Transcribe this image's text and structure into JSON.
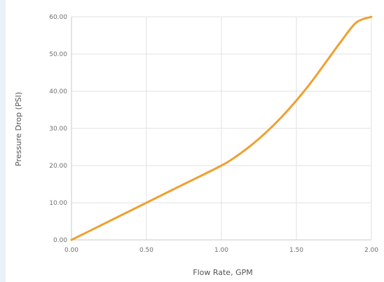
{
  "chart_data": {
    "type": "line",
    "title": "",
    "xlabel": "Flow Rate, GPM",
    "ylabel": "Pressure Drop (PSI)",
    "xlim": [
      0,
      2
    ],
    "ylim": [
      0,
      60
    ],
    "grid": true,
    "x_ticks": [
      "0.00",
      "0.50",
      "1.00",
      "1.50",
      "2.00"
    ],
    "y_ticks": [
      "0.00",
      "10.00",
      "20.00",
      "30.00",
      "40.00",
      "50.00",
      "60.00"
    ],
    "line_color": "#f0a030",
    "series": [
      {
        "x": [
          0,
          0.25,
          0.5,
          0.75,
          1.0,
          1.1,
          1.2,
          1.3,
          1.4,
          1.5,
          1.6,
          1.7,
          1.8,
          1.9,
          2.0
        ],
        "y": [
          0,
          5,
          10,
          15,
          20,
          22.5,
          25.5,
          29,
          33,
          37.5,
          42.5,
          48,
          53.5,
          58.5,
          60
        ]
      }
    ]
  }
}
